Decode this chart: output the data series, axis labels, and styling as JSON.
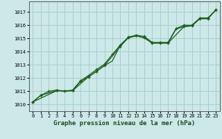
{
  "xlabel": "Graphe pression niveau de la mer (hPa)",
  "bg_color": "#cce8e8",
  "grid_color": "#aacccc",
  "line_color": "#1a5c1a",
  "xlim": [
    -0.5,
    23.5
  ],
  "ylim": [
    1009.5,
    1017.8
  ],
  "yticks": [
    1010,
    1011,
    1012,
    1013,
    1014,
    1015,
    1016,
    1017
  ],
  "xticks": [
    0,
    1,
    2,
    3,
    4,
    5,
    6,
    7,
    8,
    9,
    10,
    11,
    12,
    13,
    14,
    15,
    16,
    17,
    18,
    19,
    20,
    21,
    22,
    23
  ],
  "line1_x": [
    0,
    1,
    2,
    3,
    4,
    5,
    6,
    7,
    8,
    9,
    10,
    11,
    12,
    13,
    14,
    15,
    16,
    17,
    18,
    19,
    20,
    21,
    22,
    23
  ],
  "line1_y": [
    1010.2,
    1010.7,
    1011.0,
    1011.1,
    1011.0,
    1011.1,
    1011.8,
    1012.2,
    1012.65,
    1013.05,
    1013.8,
    1014.5,
    1015.1,
    1015.25,
    1015.15,
    1014.7,
    1014.7,
    1014.7,
    1015.75,
    1016.0,
    1016.0,
    1016.55,
    1016.55,
    1017.15
  ],
  "line2_x": [
    0,
    1,
    3,
    5,
    6,
    7,
    8,
    9,
    11,
    12,
    13,
    14,
    15,
    16,
    17,
    19,
    20,
    21,
    22,
    23
  ],
  "line2_y": [
    1010.2,
    1010.7,
    1011.05,
    1011.05,
    1011.75,
    1012.1,
    1012.5,
    1012.95,
    1014.4,
    1015.05,
    1015.2,
    1015.05,
    1014.65,
    1014.65,
    1014.65,
    1015.9,
    1015.95,
    1016.5,
    1016.5,
    1017.15
  ],
  "line3_x": [
    0,
    3,
    4,
    5,
    7,
    9,
    10,
    11,
    12,
    13,
    14,
    15,
    16,
    17,
    18,
    19,
    20,
    21,
    22,
    23
  ],
  "line3_y": [
    1010.2,
    1011.05,
    1011.0,
    1011.05,
    1012.1,
    1012.95,
    1013.3,
    1014.5,
    1015.05,
    1015.2,
    1015.05,
    1014.65,
    1014.65,
    1014.65,
    1015.7,
    1015.9,
    1015.95,
    1016.5,
    1016.5,
    1017.15
  ]
}
